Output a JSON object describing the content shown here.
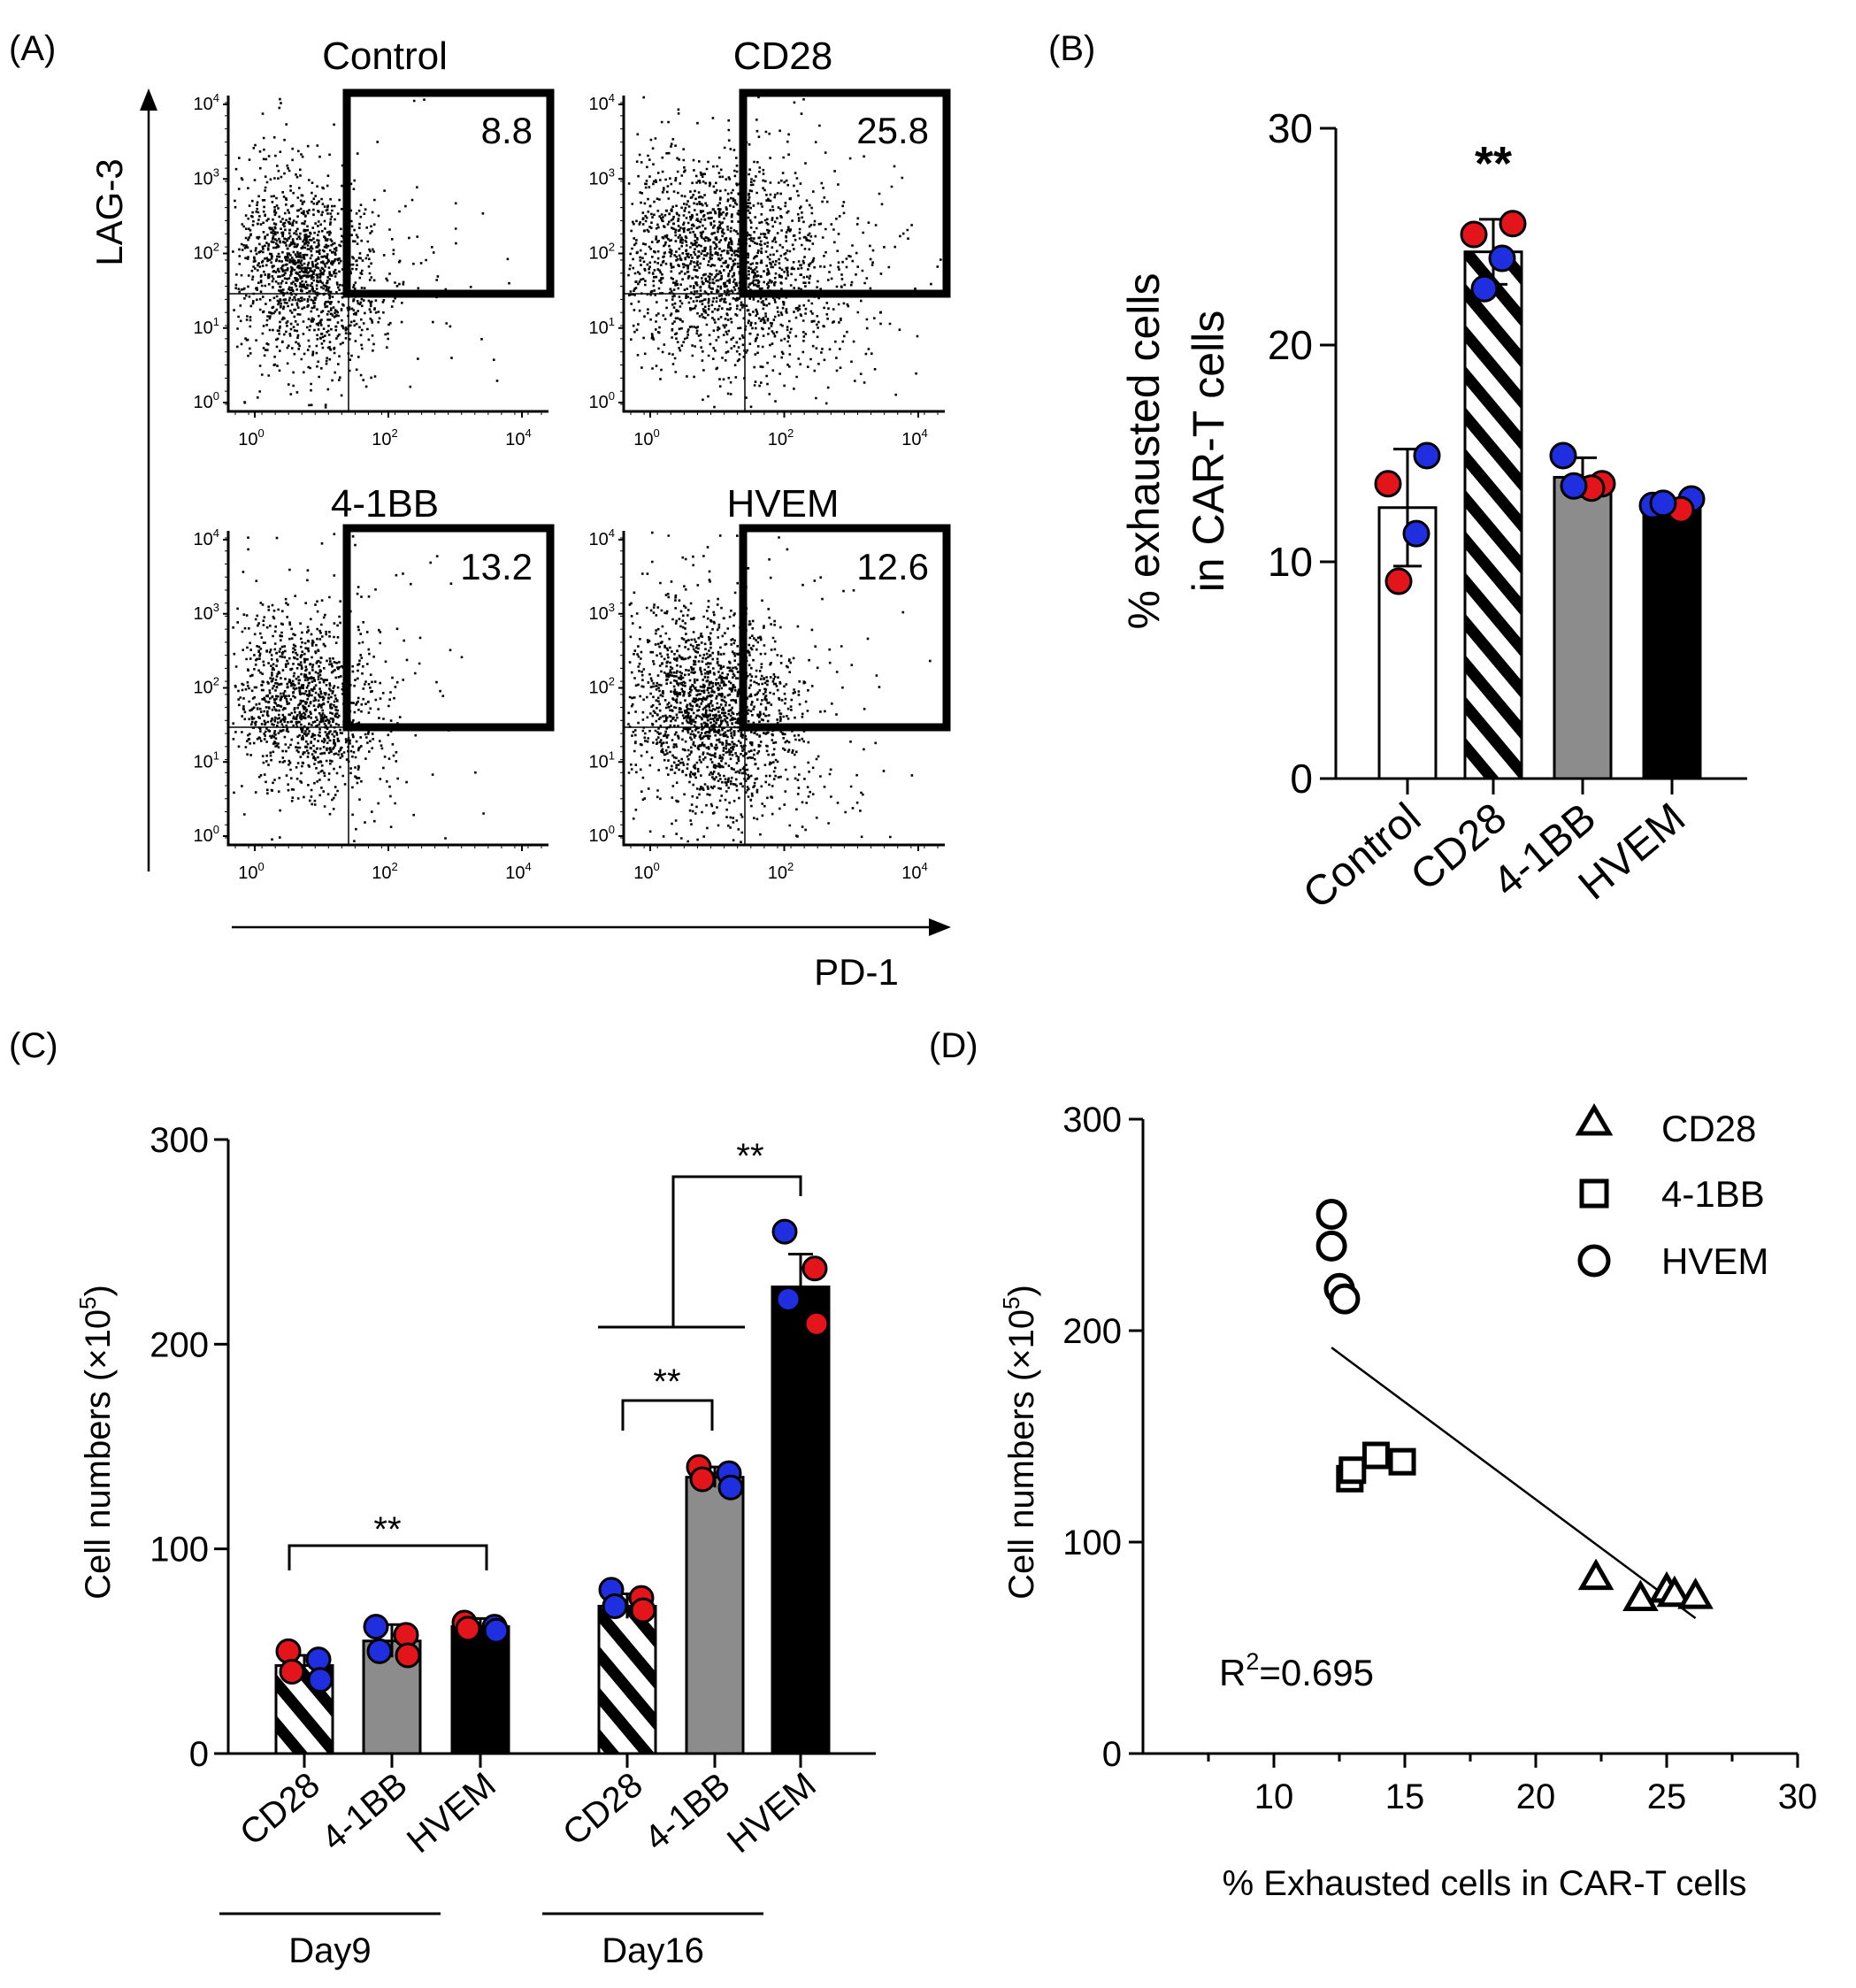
{
  "panel_letters": [
    "(A)",
    "(B)",
    "(C)",
    "(D)"
  ],
  "chart_data": [
    {
      "panel": "(A)",
      "type": "scatter",
      "subtype": "flow-cytometry-dot-plot",
      "xlabel": "PD-1",
      "ylabel": "LAG-3",
      "scale": "log",
      "x_tick_labels": [
        "10^0",
        "10^2",
        "10^4"
      ],
      "y_tick_labels": [
        "10^0",
        "10^1",
        "10^2",
        "10^3",
        "10^4"
      ],
      "plots": [
        {
          "title": "Control",
          "gate_value": "8.8"
        },
        {
          "title": "CD28",
          "gate_value": "25.8"
        },
        {
          "title": "4-1BB",
          "gate_value": "13.2"
        },
        {
          "title": "HVEM",
          "gate_value": "12.6"
        }
      ]
    },
    {
      "panel": "(B)",
      "type": "bar",
      "categories": [
        "Control",
        "CD28",
        "4-1BB",
        "HVEM"
      ],
      "values": [
        12.5,
        24.3,
        13.9,
        12.5
      ],
      "error": [
        2.7,
        1.5,
        0.9,
        0.3
      ],
      "bar_fills": [
        "white",
        "hatched",
        "gray",
        "black"
      ],
      "points": [
        [
          13.6,
          14.9,
          11.3,
          9.1
        ],
        [
          25.1,
          25.6,
          24.0,
          22.6
        ],
        [
          14.9,
          13.6,
          13.4,
          13.5
        ],
        [
          12.6,
          12.9,
          12.4,
          12.7
        ]
      ],
      "point_colors": [
        [
          "#e4141b",
          "#1f2fe0",
          "#1f2fe0",
          "#e4141b"
        ],
        [
          "#e4141b",
          "#e4141b",
          "#1f2fe0",
          "#1f2fe0"
        ],
        [
          "#1f2fe0",
          "#e4141b",
          "#e4141b",
          "#1f2fe0"
        ],
        [
          "#1f2fe0",
          "#1f2fe0",
          "#e4141b",
          "#1f2fe0"
        ]
      ],
      "ylabel": "% exhausted cells in CAR-T cells",
      "ylabel_lines": [
        "% exhausted cells",
        "in CAR-T cells"
      ],
      "ylim": [
        0,
        30
      ],
      "yticks": [
        "0",
        "10",
        "20",
        "30"
      ],
      "annotation": "**"
    },
    {
      "panel": "(C)",
      "type": "bar",
      "groups": [
        "Day9",
        "Day16"
      ],
      "categories": [
        "CD28",
        "4-1BB",
        "HVEM"
      ],
      "series": [
        {
          "group": "Day9",
          "values": [
            43,
            55,
            62
          ],
          "error": [
            5,
            8,
            4
          ],
          "points": [
            [
              50,
              46,
              40,
              36
            ],
            [
              62,
              58,
              50,
              48
            ],
            [
              64,
              62,
              61,
              60
            ]
          ]
        },
        {
          "group": "Day16",
          "values": [
            72,
            135,
            228
          ],
          "error": [
            6,
            5,
            16
          ],
          "points": [
            [
              80,
              76,
              72,
              70
            ],
            [
              140,
              137,
              134,
              130
            ],
            [
              255,
              237,
              222,
              210
            ]
          ]
        }
      ],
      "bar_fills": [
        "hatched",
        "gray",
        "black"
      ],
      "ylabel": "Cell numbers (×10⁵)",
      "ylabel_main": "Cell numbers (×10",
      "ylabel_exp": "5",
      "ylabel_close": ")",
      "ylim": [
        0,
        300
      ],
      "yticks": [
        "0",
        "100",
        "200",
        "300"
      ],
      "significance": [
        "**",
        "**",
        "**"
      ]
    },
    {
      "panel": "(D)",
      "type": "scatter",
      "xlabel": "% Exhausted cells in CAR-T cells",
      "ylabel": "Cell numbers (×10⁵)",
      "ylabel_main": "Cell numbers (×10",
      "ylabel_exp": "5",
      "ylabel_close": ")",
      "xlim": [
        5,
        30
      ],
      "ylim": [
        0,
        300
      ],
      "xticks": [
        "10",
        "15",
        "20",
        "25",
        "30"
      ],
      "yticks": [
        "0",
        "100",
        "200",
        "300"
      ],
      "series": [
        {
          "name": "CD28",
          "marker": "triangle",
          "x": [
            22.3,
            24.0,
            25.0,
            25.3,
            26.1
          ],
          "y": [
            83,
            73,
            77,
            75,
            74
          ]
        },
        {
          "name": "4-1BB",
          "marker": "square",
          "x": [
            12.9,
            13.0,
            13.9,
            14.9
          ],
          "y": [
            130,
            134,
            141,
            138
          ]
        },
        {
          "name": "HVEM",
          "marker": "circle",
          "x": [
            12.2,
            12.2,
            12.5,
            12.7
          ],
          "y": [
            255,
            240,
            220,
            215
          ]
        }
      ],
      "regression": {
        "x": [
          12.2,
          26.1
        ],
        "y": [
          192,
          64
        ]
      },
      "r2_label": "R",
      "r2_exp": "2",
      "r2_value": "=0.695"
    }
  ]
}
